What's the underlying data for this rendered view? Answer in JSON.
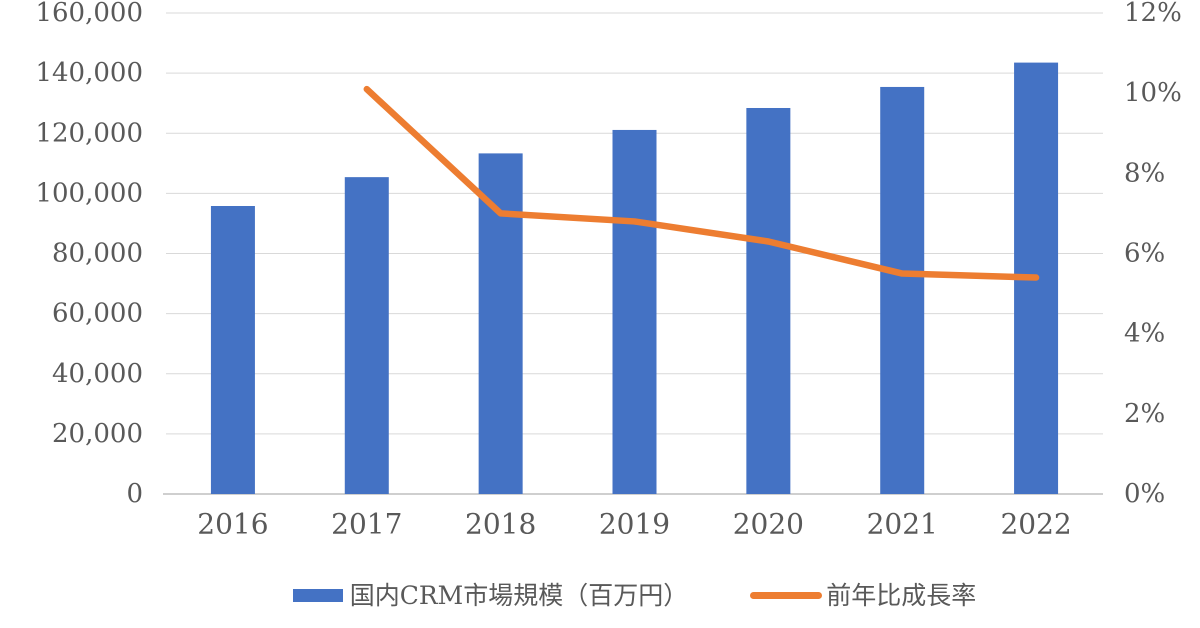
{
  "chart_data": {
    "type": "bar",
    "subtype": "bar-line-combo",
    "title": "",
    "categories": [
      "2016",
      "2017",
      "2018",
      "2019",
      "2020",
      "2021",
      "2022"
    ],
    "series": [
      {
        "name": "国内CRM市場規模（百万円）",
        "type": "bar",
        "axis": "left",
        "color": "#4472c4",
        "values": [
          95800,
          105400,
          113300,
          121100,
          128400,
          135400,
          143500
        ]
      },
      {
        "name": "前年比成長率",
        "type": "line",
        "axis": "right",
        "color": "#ed7d31",
        "values": [
          null,
          10.1,
          7.0,
          6.8,
          6.3,
          5.5,
          5.4
        ]
      }
    ],
    "left_axis": {
      "min": 0,
      "max": 160000,
      "step": 20000,
      "tick_labels": [
        "0",
        "20,000",
        "40,000",
        "60,000",
        "80,000",
        "100,000",
        "120,000",
        "140,000",
        "160,000"
      ]
    },
    "right_axis": {
      "min": 0,
      "max": 12,
      "step": 2,
      "tick_labels": [
        "0%",
        "2%",
        "4%",
        "6%",
        "8%",
        "10%",
        "12%"
      ]
    },
    "grid": true,
    "legend_position": "bottom"
  },
  "legend": {
    "items": [
      {
        "label": "国内CRM市場規模（百万円）",
        "marker": "bar",
        "color": "#4472c4"
      },
      {
        "label": "前年比成長率",
        "marker": "line",
        "color": "#ed7d31"
      }
    ]
  },
  "colors": {
    "bar": "#4472c4",
    "line": "#ed7d31",
    "grid": "#d9d9d9",
    "axis_line": "#bfbfbf",
    "text": "#595959",
    "background": "#ffffff"
  }
}
